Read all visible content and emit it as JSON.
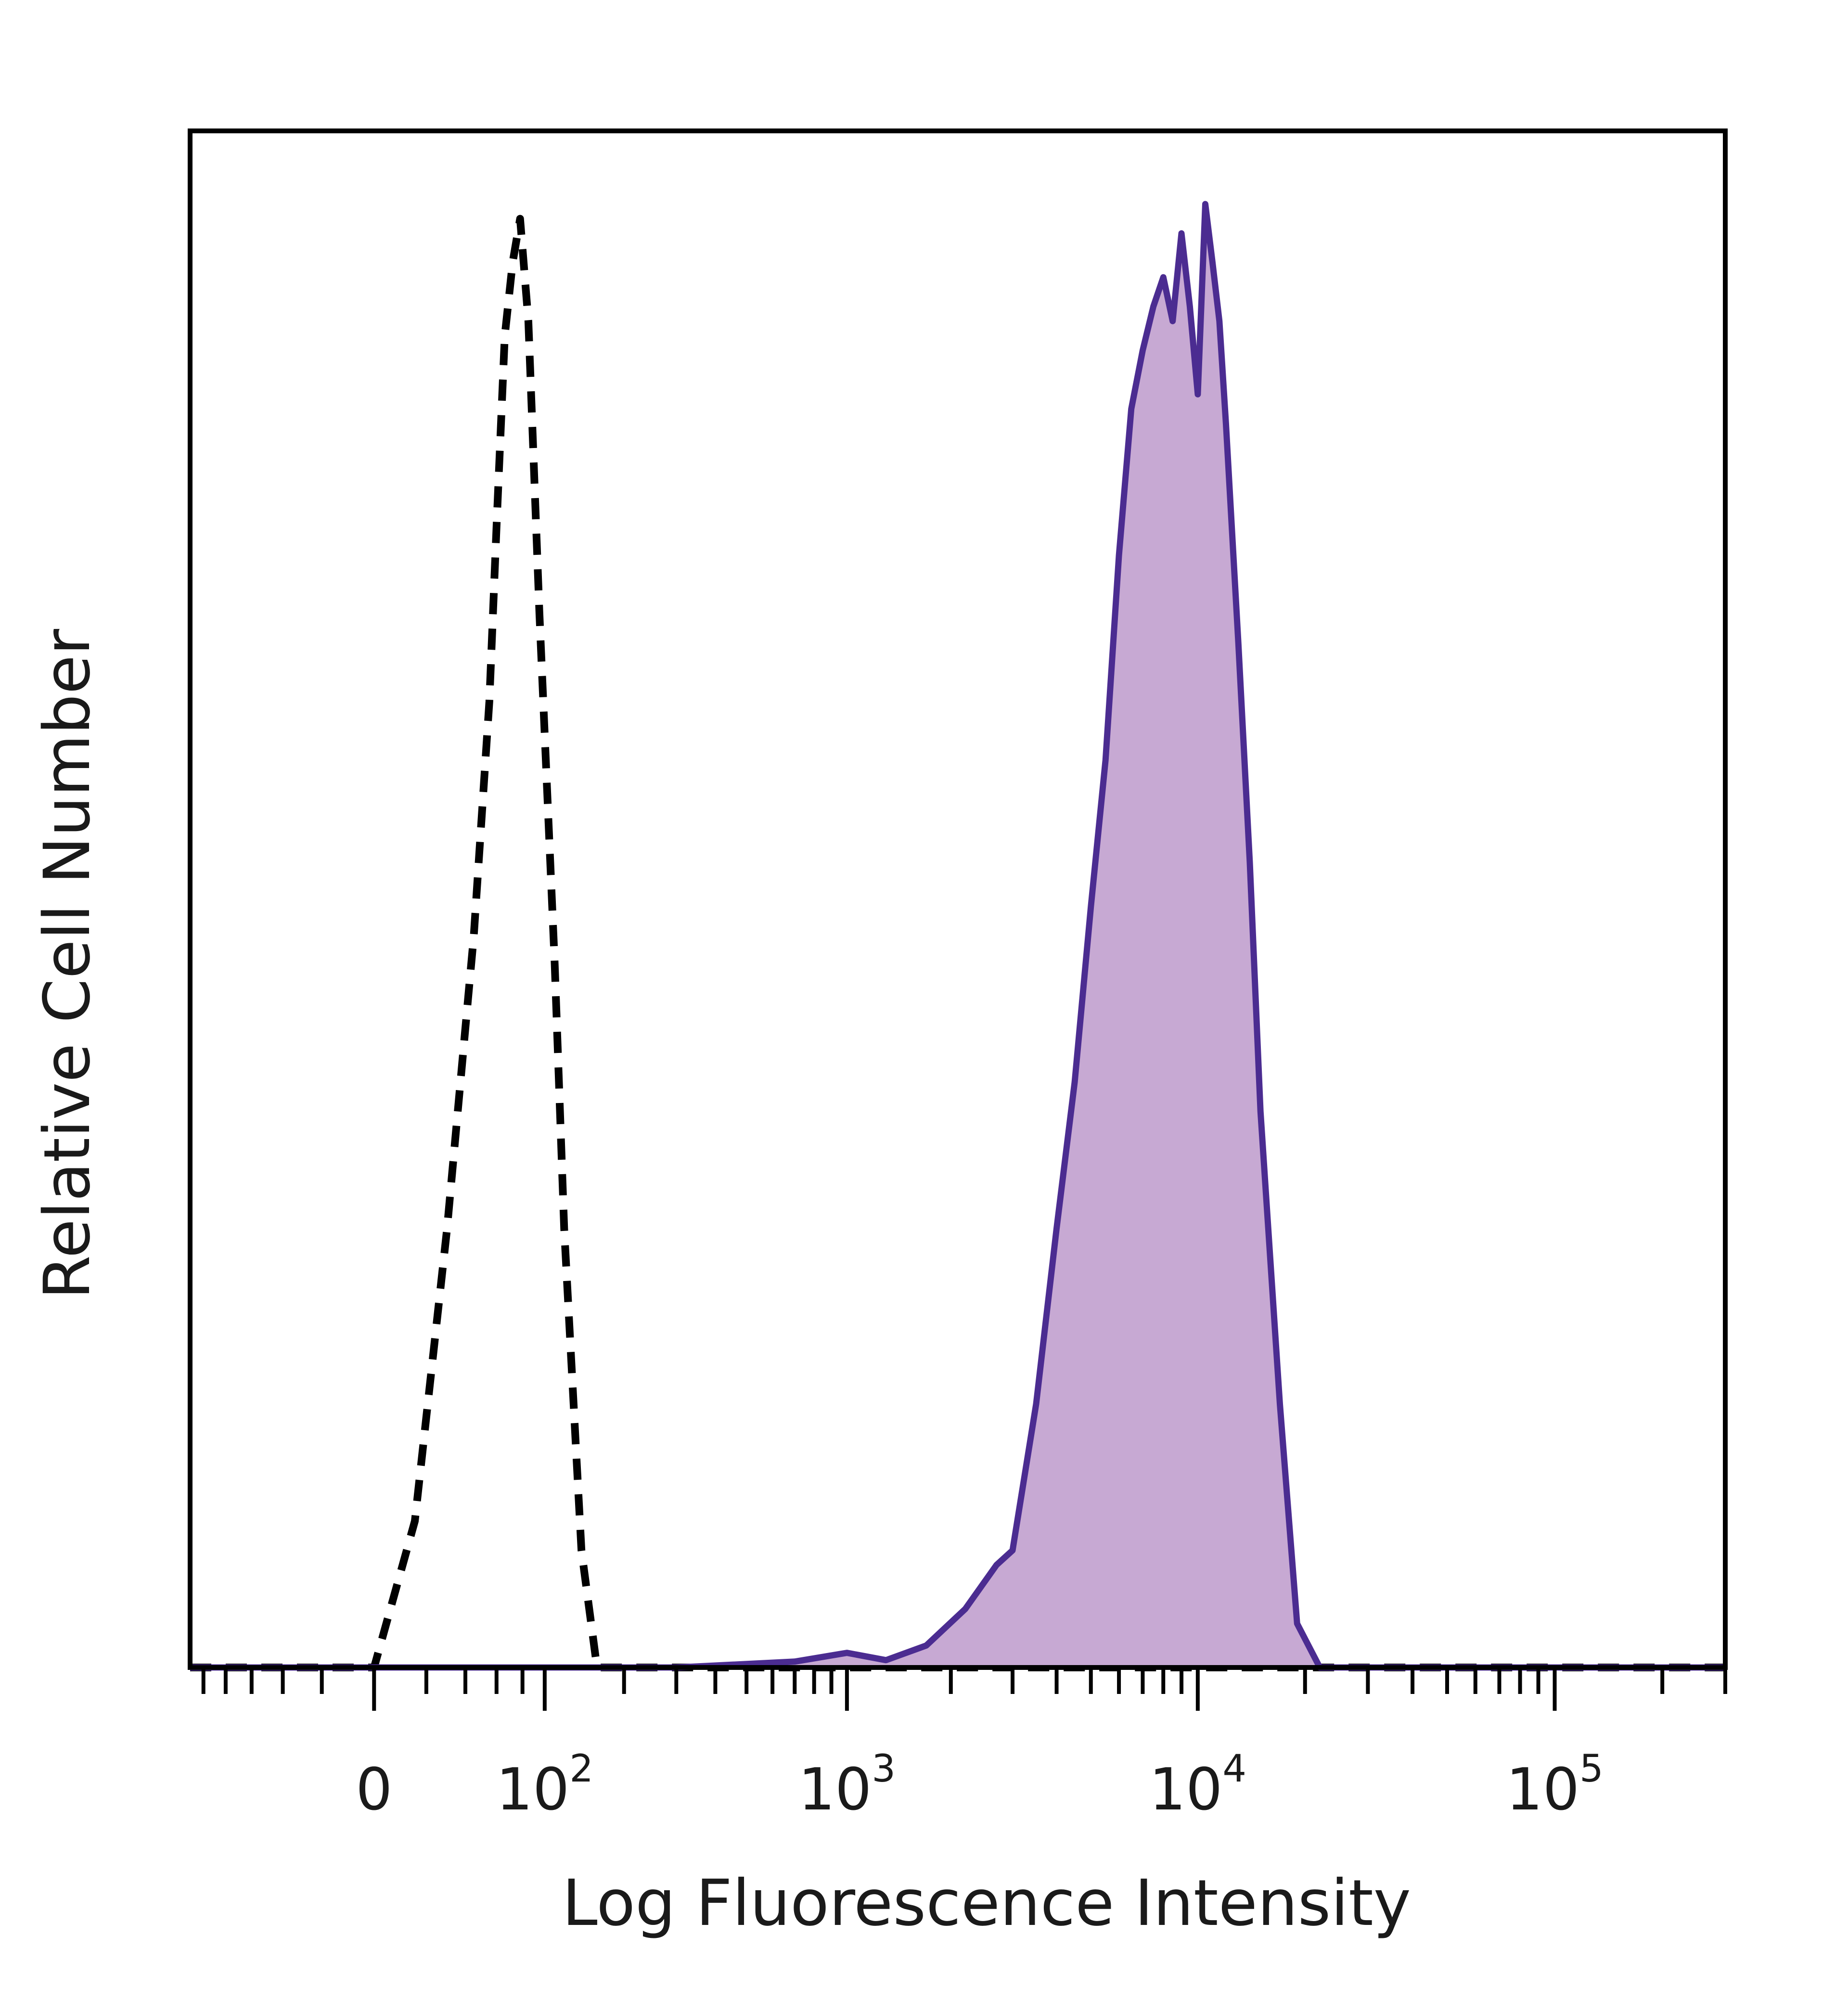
{
  "chart_data": {
    "type": "area",
    "xlabel": "Log Fluorescence Intensity",
    "ylabel": "Relative Cell Number",
    "x_scale": "biexponential",
    "xlim": [
      -150,
      300000
    ],
    "ylim": [
      0,
      1.05
    ],
    "x_ticks": [
      {
        "value": 0,
        "base": "0",
        "exp": ""
      },
      {
        "value": 100,
        "base": "10",
        "exp": "2"
      },
      {
        "value": 1000,
        "base": "10",
        "exp": "3"
      },
      {
        "value": 10000,
        "base": "10",
        "exp": "4"
      },
      {
        "value": 100000,
        "base": "10",
        "exp": "5"
      }
    ],
    "grid": false,
    "legend": "none",
    "series": [
      {
        "style": "dashed",
        "color": "#000000",
        "fill": "none",
        "x": [
          -150,
          -50,
          0,
          15,
          30,
          45,
          55,
          60,
          66,
          72,
          78,
          85,
          95,
          110,
          120,
          140,
          160,
          300,
          1000,
          10000,
          300000
        ],
        "y": [
          0,
          0,
          0,
          0.1,
          0.3,
          0.5,
          0.66,
          0.78,
          0.91,
          0.96,
          0.99,
          0.92,
          0.72,
          0.48,
          0.3,
          0.08,
          0,
          0,
          0,
          0,
          0
        ]
      },
      {
        "style": "solid",
        "color": "#4b2c91",
        "fill": "#c7a9d3",
        "x": [
          -150,
          0,
          100,
          300,
          700,
          1000,
          1300,
          1700,
          2200,
          2700,
          3000,
          3500,
          4000,
          4500,
          5000,
          5500,
          6000,
          6500,
          7000,
          7500,
          8000,
          8500,
          9000,
          9500,
          10000,
          10500,
          11000,
          11500,
          12000,
          13000,
          14000,
          15000,
          17000,
          19000,
          22000,
          300000
        ],
        "y": [
          0,
          0,
          0,
          0,
          0.004,
          0.01,
          0.005,
          0.015,
          0.04,
          0.07,
          0.08,
          0.18,
          0.3,
          0.4,
          0.52,
          0.62,
          0.76,
          0.86,
          0.9,
          0.93,
          0.95,
          0.92,
          0.98,
          0.93,
          0.87,
          1.0,
          0.96,
          0.92,
          0.85,
          0.7,
          0.55,
          0.38,
          0.18,
          0.03,
          0,
          0
        ]
      }
    ]
  },
  "colors": {
    "frame": "#000000",
    "positive_line": "#4b2c91",
    "positive_fill": "#c7a9d3",
    "control_line": "#000000"
  }
}
